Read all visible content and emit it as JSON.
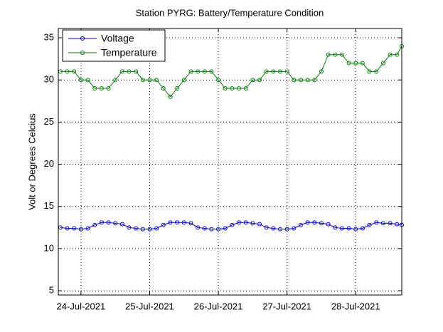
{
  "chart_data": {
    "type": "line",
    "title": "Station PYRG: Battery/Temperature Condition",
    "y_label": "Volt or Degrees Celcius",
    "x": [
      23.7,
      23.8,
      23.9,
      24.0,
      24.1,
      24.2,
      24.3,
      24.4,
      24.5,
      24.6,
      24.7,
      24.8,
      24.9,
      25.0,
      25.1,
      25.2,
      25.3,
      25.4,
      25.5,
      25.6,
      25.7,
      25.8,
      25.9,
      26.0,
      26.1,
      26.2,
      26.3,
      26.4,
      26.5,
      26.6,
      26.7,
      26.8,
      26.9,
      27.0,
      27.1,
      27.2,
      27.3,
      27.4,
      27.5,
      27.6,
      27.7,
      27.8,
      27.9,
      28.0,
      28.1,
      28.2,
      28.3,
      28.4,
      28.5,
      28.6,
      28.67
    ],
    "series": [
      {
        "name": "Voltage",
        "color": "#0000ff",
        "values": [
          12.5,
          12.4,
          12.4,
          12.3,
          12.4,
          12.8,
          13.1,
          13.1,
          13.0,
          12.9,
          12.5,
          12.4,
          12.3,
          12.3,
          12.4,
          12.8,
          13.1,
          13.1,
          13.1,
          13.0,
          12.5,
          12.4,
          12.3,
          12.3,
          12.4,
          12.8,
          13.1,
          13.1,
          13.0,
          12.9,
          12.5,
          12.4,
          12.3,
          12.3,
          12.4,
          12.8,
          13.1,
          13.1,
          13.0,
          12.9,
          12.5,
          12.4,
          12.4,
          12.3,
          12.4,
          12.8,
          13.1,
          13.0,
          13.0,
          12.9,
          12.8
        ]
      },
      {
        "name": "Temperature",
        "color": "#008000",
        "values": [
          31,
          31,
          31,
          30,
          30,
          29,
          29,
          29,
          30,
          31,
          31,
          31,
          30,
          30,
          30,
          29,
          28,
          29,
          30,
          31,
          31,
          31,
          31,
          30,
          29,
          29,
          29,
          29,
          30,
          30,
          31,
          31,
          31,
          31,
          30,
          30,
          30,
          30,
          31,
          33,
          33,
          33,
          32,
          32,
          32,
          31,
          31,
          32,
          33,
          33,
          34
        ]
      }
    ],
    "xlim": [
      23.67,
      28.67
    ],
    "xticks": [
      {
        "value": 24,
        "label": "24-Jul-2021"
      },
      {
        "value": 25,
        "label": "25-Jul-2021"
      },
      {
        "value": 26,
        "label": "26-Jul-2021"
      },
      {
        "value": 27,
        "label": "27-Jul-2021"
      },
      {
        "value": 28,
        "label": "28-Jul-2021"
      }
    ],
    "ylim": [
      4.5,
      36.1
    ],
    "yticks": [
      5,
      10,
      15,
      20,
      25,
      30,
      35
    ],
    "grid": true,
    "legend": "upper-left"
  }
}
